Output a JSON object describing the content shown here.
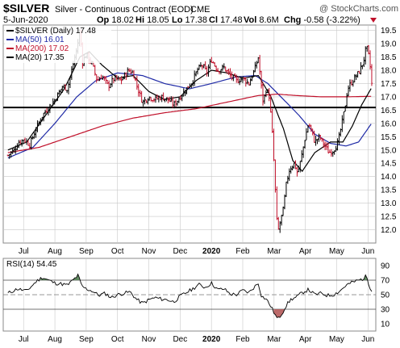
{
  "header": {
    "symbol": "$SILVER",
    "description": "Silver - Continuous Contract (EOD)",
    "exchange": "CME",
    "watermark": "@ StockCharts.com",
    "date": "5-Jun-2020",
    "quote": [
      {
        "label": "Op",
        "value": "18.02"
      },
      {
        "label": "Hi",
        "value": "18.05"
      },
      {
        "label": "Lo",
        "value": "17.38"
      },
      {
        "label": "Cl",
        "value": "17.48"
      },
      {
        "label": "Vol",
        "value": "8.6M"
      },
      {
        "label": "Chg",
        "value": "-0.58 (-3.22%)"
      }
    ],
    "chg_arrow": "down-triangle-icon"
  },
  "legend": [
    {
      "text": "$SILVER (Daily) 17.48",
      "color": "#000000",
      "icon": "line-swatch"
    },
    {
      "text": "MA(50) 16.01",
      "color": "#1f2aa6",
      "icon": "line-swatch"
    },
    {
      "text": "MA(200) 17.02",
      "color": "#c0102a",
      "icon": "line-swatch"
    },
    {
      "text": "MA(20) 17.35",
      "color": "#000000",
      "icon": "line-swatch"
    }
  ],
  "rsi_label": "RSI(14) 54.45",
  "colors": {
    "up": "#000000",
    "down": "#c0102a",
    "ma50": "#1f2aa6",
    "ma200": "#c0102a",
    "ma20": "#000000",
    "rsi_line": "#000000",
    "overbought_fill": "#4a7a4a",
    "oversold_fill": "#b05050",
    "grid": "#c8c8c8",
    "support_line": "#000000"
  },
  "chart_data": [
    {
      "type": "candlestick",
      "title": "$SILVER Silver - Continuous Contract (EOD) CME",
      "y_scale": "linear",
      "ylim": [
        11.5,
        19.7
      ],
      "y_ticks": [
        12.0,
        12.5,
        13.0,
        13.5,
        14.0,
        14.5,
        15.0,
        15.5,
        16.0,
        16.5,
        17.0,
        17.5,
        18.0,
        18.5,
        19.0,
        19.5
      ],
      "x_ticks": [
        "Jul",
        "Aug",
        "Sep",
        "Oct",
        "Nov",
        "Dec",
        "2020",
        "Feb",
        "Mar",
        "Apr",
        "May",
        "Jun"
      ],
      "x_tick_months": [
        0.5,
        1.5,
        2.5,
        3.5,
        4.5,
        5.5,
        6.5,
        7.5,
        8.5,
        9.5,
        10.5,
        11.5
      ],
      "grid": true,
      "horizontal_line": 16.6,
      "close_path": [
        {
          "m": 0.0,
          "v": 14.8
        },
        {
          "m": 0.2,
          "v": 15.0
        },
        {
          "m": 0.35,
          "v": 15.3
        },
        {
          "m": 0.5,
          "v": 15.4
        },
        {
          "m": 0.7,
          "v": 15.2
        },
        {
          "m": 0.9,
          "v": 15.8
        },
        {
          "m": 1.1,
          "v": 16.3
        },
        {
          "m": 1.3,
          "v": 16.6
        },
        {
          "m": 1.5,
          "v": 16.9
        },
        {
          "m": 1.75,
          "v": 17.4
        },
        {
          "m": 1.9,
          "v": 17.3
        },
        {
          "m": 2.1,
          "v": 18.3
        },
        {
          "m": 2.2,
          "v": 18.8
        },
        {
          "m": 2.3,
          "v": 19.5
        },
        {
          "m": 2.38,
          "v": 18.3
        },
        {
          "m": 2.5,
          "v": 18.6
        },
        {
          "m": 2.7,
          "v": 18.2
        },
        {
          "m": 2.85,
          "v": 17.6
        },
        {
          "m": 3.0,
          "v": 17.8
        },
        {
          "m": 3.2,
          "v": 17.4
        },
        {
          "m": 3.4,
          "v": 17.7
        },
        {
          "m": 3.6,
          "v": 17.6
        },
        {
          "m": 3.85,
          "v": 18.0
        },
        {
          "m": 4.0,
          "v": 17.9
        },
        {
          "m": 4.15,
          "v": 17.3
        },
        {
          "m": 4.3,
          "v": 16.8
        },
        {
          "m": 4.5,
          "v": 17.0
        },
        {
          "m": 4.7,
          "v": 16.9
        },
        {
          "m": 4.9,
          "v": 17.0
        },
        {
          "m": 5.1,
          "v": 16.9
        },
        {
          "m": 5.3,
          "v": 16.7
        },
        {
          "m": 5.5,
          "v": 17.0
        },
        {
          "m": 5.7,
          "v": 17.3
        },
        {
          "m": 5.9,
          "v": 17.6
        },
        {
          "m": 6.05,
          "v": 18.0
        },
        {
          "m": 6.2,
          "v": 18.2
        },
        {
          "m": 6.35,
          "v": 17.9
        },
        {
          "m": 6.5,
          "v": 18.4
        },
        {
          "m": 6.7,
          "v": 18.0
        },
        {
          "m": 6.9,
          "v": 18.1
        },
        {
          "m": 7.1,
          "v": 17.8
        },
        {
          "m": 7.3,
          "v": 17.6
        },
        {
          "m": 7.5,
          "v": 17.7
        },
        {
          "m": 7.7,
          "v": 17.5
        },
        {
          "m": 7.9,
          "v": 18.1
        },
        {
          "m": 8.0,
          "v": 18.5
        },
        {
          "m": 8.08,
          "v": 17.5
        },
        {
          "m": 8.15,
          "v": 16.8
        },
        {
          "m": 8.25,
          "v": 17.3
        },
        {
          "m": 8.35,
          "v": 17.0
        },
        {
          "m": 8.45,
          "v": 15.5
        },
        {
          "m": 8.52,
          "v": 14.0
        },
        {
          "m": 8.58,
          "v": 12.5
        },
        {
          "m": 8.62,
          "v": 11.9
        },
        {
          "m": 8.7,
          "v": 12.3
        },
        {
          "m": 8.8,
          "v": 12.8
        },
        {
          "m": 8.9,
          "v": 13.8
        },
        {
          "m": 9.0,
          "v": 14.3
        },
        {
          "m": 9.15,
          "v": 14.5
        },
        {
          "m": 9.25,
          "v": 14.1
        },
        {
          "m": 9.35,
          "v": 14.6
        },
        {
          "m": 9.5,
          "v": 15.5
        },
        {
          "m": 9.6,
          "v": 16.0
        },
        {
          "m": 9.7,
          "v": 15.7
        },
        {
          "m": 9.8,
          "v": 15.3
        },
        {
          "m": 9.95,
          "v": 15.5
        },
        {
          "m": 10.1,
          "v": 15.2
        },
        {
          "m": 10.25,
          "v": 14.9
        },
        {
          "m": 10.4,
          "v": 15.0
        },
        {
          "m": 10.55,
          "v": 15.3
        },
        {
          "m": 10.75,
          "v": 16.5
        },
        {
          "m": 10.85,
          "v": 17.3
        },
        {
          "m": 11.0,
          "v": 17.6
        },
        {
          "m": 11.2,
          "v": 17.9
        },
        {
          "m": 11.35,
          "v": 18.3
        },
        {
          "m": 11.45,
          "v": 18.9
        },
        {
          "m": 11.55,
          "v": 18.4
        },
        {
          "m": 11.62,
          "v": 17.48
        }
      ],
      "series": [
        {
          "name": "MA(50)",
          "path": [
            {
              "m": 0.0,
              "v": 14.7
            },
            {
              "m": 0.8,
              "v": 15.1
            },
            {
              "m": 1.5,
              "v": 16.0
            },
            {
              "m": 2.2,
              "v": 17.0
            },
            {
              "m": 2.8,
              "v": 17.6
            },
            {
              "m": 3.5,
              "v": 17.9
            },
            {
              "m": 4.3,
              "v": 17.8
            },
            {
              "m": 5.0,
              "v": 17.5
            },
            {
              "m": 5.8,
              "v": 17.3
            },
            {
              "m": 6.5,
              "v": 17.5
            },
            {
              "m": 7.3,
              "v": 17.75
            },
            {
              "m": 7.9,
              "v": 17.8
            },
            {
              "m": 8.3,
              "v": 17.5
            },
            {
              "m": 8.8,
              "v": 16.9
            },
            {
              "m": 9.3,
              "v": 16.3
            },
            {
              "m": 9.8,
              "v": 15.6
            },
            {
              "m": 10.3,
              "v": 15.25
            },
            {
              "m": 10.8,
              "v": 15.15
            },
            {
              "m": 11.2,
              "v": 15.3
            },
            {
              "m": 11.62,
              "v": 16.01
            }
          ]
        },
        {
          "name": "MA(200)",
          "path": [
            {
              "m": 0.0,
              "v": 14.9
            },
            {
              "m": 1.0,
              "v": 15.1
            },
            {
              "m": 2.0,
              "v": 15.5
            },
            {
              "m": 3.0,
              "v": 15.9
            },
            {
              "m": 4.0,
              "v": 16.2
            },
            {
              "m": 5.0,
              "v": 16.4
            },
            {
              "m": 6.0,
              "v": 16.55
            },
            {
              "m": 7.0,
              "v": 16.8
            },
            {
              "m": 8.0,
              "v": 17.05
            },
            {
              "m": 8.6,
              "v": 17.1
            },
            {
              "m": 9.2,
              "v": 17.05
            },
            {
              "m": 10.0,
              "v": 17.0
            },
            {
              "m": 10.8,
              "v": 17.0
            },
            {
              "m": 11.62,
              "v": 17.02
            }
          ]
        },
        {
          "name": "MA(20)",
          "path": [
            {
              "m": 0.0,
              "v": 15.0
            },
            {
              "m": 0.6,
              "v": 15.3
            },
            {
              "m": 1.2,
              "v": 16.3
            },
            {
              "m": 1.8,
              "v": 17.3
            },
            {
              "m": 2.3,
              "v": 18.5
            },
            {
              "m": 2.6,
              "v": 18.7
            },
            {
              "m": 3.0,
              "v": 18.2
            },
            {
              "m": 3.5,
              "v": 17.7
            },
            {
              "m": 4.0,
              "v": 17.8
            },
            {
              "m": 4.5,
              "v": 17.2
            },
            {
              "m": 5.0,
              "v": 16.9
            },
            {
              "m": 5.5,
              "v": 17.0
            },
            {
              "m": 6.0,
              "v": 17.6
            },
            {
              "m": 6.5,
              "v": 18.0
            },
            {
              "m": 7.0,
              "v": 17.9
            },
            {
              "m": 7.5,
              "v": 17.7
            },
            {
              "m": 8.0,
              "v": 17.8
            },
            {
              "m": 8.4,
              "v": 17.0
            },
            {
              "m": 8.8,
              "v": 15.8
            },
            {
              "m": 9.1,
              "v": 14.6
            },
            {
              "m": 9.4,
              "v": 14.2
            },
            {
              "m": 9.8,
              "v": 14.9
            },
            {
              "m": 10.3,
              "v": 15.3
            },
            {
              "m": 10.7,
              "v": 15.3
            },
            {
              "m": 11.0,
              "v": 15.9
            },
            {
              "m": 11.3,
              "v": 16.7
            },
            {
              "m": 11.62,
              "v": 17.35
            }
          ]
        }
      ]
    },
    {
      "type": "line",
      "title": "RSI(14) 54.45",
      "ylim": [
        0,
        100
      ],
      "y_ticks": [
        10,
        30,
        50,
        70,
        90
      ],
      "reference_lines": [
        30,
        50,
        70
      ],
      "x_ticks": [
        "Jul",
        "Aug",
        "Sep",
        "Oct",
        "Nov",
        "Dec",
        "2020",
        "Feb",
        "Mar",
        "Apr",
        "May",
        "Jun"
      ],
      "path": [
        {
          "m": 0.0,
          "v": 52
        },
        {
          "m": 0.3,
          "v": 58
        },
        {
          "m": 0.6,
          "v": 55
        },
        {
          "m": 0.9,
          "v": 68
        },
        {
          "m": 1.1,
          "v": 74
        },
        {
          "m": 1.3,
          "v": 70
        },
        {
          "m": 1.5,
          "v": 66
        },
        {
          "m": 1.7,
          "v": 65
        },
        {
          "m": 1.9,
          "v": 63
        },
        {
          "m": 2.1,
          "v": 71
        },
        {
          "m": 2.25,
          "v": 77
        },
        {
          "m": 2.35,
          "v": 62
        },
        {
          "m": 2.5,
          "v": 58
        },
        {
          "m": 2.7,
          "v": 55
        },
        {
          "m": 2.9,
          "v": 49
        },
        {
          "m": 3.1,
          "v": 52
        },
        {
          "m": 3.3,
          "v": 46
        },
        {
          "m": 3.5,
          "v": 50
        },
        {
          "m": 3.7,
          "v": 52
        },
        {
          "m": 3.9,
          "v": 54
        },
        {
          "m": 4.1,
          "v": 44
        },
        {
          "m": 4.3,
          "v": 38
        },
        {
          "m": 4.5,
          "v": 43
        },
        {
          "m": 4.7,
          "v": 46
        },
        {
          "m": 4.9,
          "v": 44
        },
        {
          "m": 5.1,
          "v": 43
        },
        {
          "m": 5.3,
          "v": 40
        },
        {
          "m": 5.5,
          "v": 48
        },
        {
          "m": 5.7,
          "v": 53
        },
        {
          "m": 5.9,
          "v": 58
        },
        {
          "m": 6.1,
          "v": 64
        },
        {
          "m": 6.3,
          "v": 60
        },
        {
          "m": 6.5,
          "v": 66
        },
        {
          "m": 6.7,
          "v": 57
        },
        {
          "m": 6.9,
          "v": 58
        },
        {
          "m": 7.1,
          "v": 51
        },
        {
          "m": 7.3,
          "v": 50
        },
        {
          "m": 7.5,
          "v": 56
        },
        {
          "m": 7.7,
          "v": 53
        },
        {
          "m": 7.9,
          "v": 62
        },
        {
          "m": 8.0,
          "v": 66
        },
        {
          "m": 8.1,
          "v": 48
        },
        {
          "m": 8.25,
          "v": 44
        },
        {
          "m": 8.4,
          "v": 34
        },
        {
          "m": 8.55,
          "v": 21
        },
        {
          "m": 8.62,
          "v": 16
        },
        {
          "m": 8.75,
          "v": 24
        },
        {
          "m": 8.9,
          "v": 36
        },
        {
          "m": 9.05,
          "v": 44
        },
        {
          "m": 9.2,
          "v": 46
        },
        {
          "m": 9.4,
          "v": 53
        },
        {
          "m": 9.6,
          "v": 57
        },
        {
          "m": 9.8,
          "v": 50
        },
        {
          "m": 10.0,
          "v": 52
        },
        {
          "m": 10.2,
          "v": 49
        },
        {
          "m": 10.4,
          "v": 50
        },
        {
          "m": 10.6,
          "v": 55
        },
        {
          "m": 10.8,
          "v": 63
        },
        {
          "m": 11.0,
          "v": 67
        },
        {
          "m": 11.2,
          "v": 70
        },
        {
          "m": 11.35,
          "v": 72
        },
        {
          "m": 11.45,
          "v": 76
        },
        {
          "m": 11.55,
          "v": 62
        },
        {
          "m": 11.62,
          "v": 54.45
        }
      ]
    }
  ]
}
